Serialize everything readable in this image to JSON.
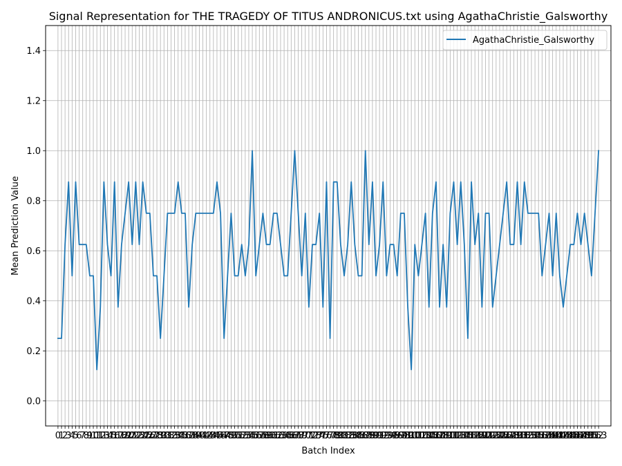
{
  "chart_data": {
    "type": "line",
    "title": "Signal Representation for THE TRAGEDY OF TITUS ANDRONICUS.txt using AgathaChristie_Galsworthy",
    "xlabel": "Batch Index",
    "ylabel": "Mean Prediction Value",
    "ylim": [
      -0.1,
      1.5
    ],
    "xlim": [
      -3.5,
      156.5
    ],
    "y_ticks": [
      0.0,
      0.2,
      0.4,
      0.6,
      0.8,
      1.0,
      1.2,
      1.4
    ],
    "y_tick_labels": [
      "0.0",
      "0.2",
      "0.4",
      "0.6",
      "0.8",
      "1.0",
      "1.2",
      "1.4"
    ],
    "grid": true,
    "legend_position": "top-right",
    "color": "#1f77b4",
    "series": [
      {
        "name": "AgathaChristie_Galsworthy",
        "x": [
          0,
          1,
          2,
          3,
          4,
          5,
          6,
          7,
          8,
          9,
          10,
          11,
          12,
          13,
          14,
          15,
          16,
          17,
          18,
          19,
          20,
          21,
          22,
          23,
          24,
          25,
          26,
          27,
          28,
          29,
          30,
          31,
          32,
          33,
          34,
          35,
          36,
          37,
          38,
          39,
          40,
          41,
          42,
          43,
          44,
          45,
          46,
          47,
          48,
          49,
          50,
          51,
          52,
          53,
          54,
          55,
          56,
          57,
          58,
          59,
          60,
          61,
          62,
          63,
          64,
          65,
          66,
          67,
          68,
          69,
          70,
          71,
          72,
          73,
          74,
          75,
          76,
          77,
          78,
          79,
          80,
          81,
          82,
          83,
          84,
          85,
          86,
          87,
          88,
          89,
          90,
          91,
          92,
          93,
          94,
          95,
          96,
          97,
          98,
          99,
          100,
          101,
          102,
          103,
          104,
          105,
          106,
          107,
          108,
          109,
          110,
          111,
          112,
          113,
          114,
          115,
          116,
          117,
          118,
          119,
          120,
          121,
          122,
          123,
          124,
          125,
          126,
          127,
          128,
          129,
          130,
          131,
          132,
          133,
          134,
          135,
          136,
          137,
          138,
          139,
          140,
          141,
          142,
          143,
          144,
          145,
          146,
          147,
          148,
          149,
          150,
          151,
          152,
          153
        ],
        "values": [
          0.25,
          0.25,
          0.625,
          0.875,
          0.5,
          0.875,
          0.625,
          0.625,
          0.625,
          0.5,
          0.5,
          0.125,
          0.375,
          0.875,
          0.625,
          0.5,
          0.875,
          0.375,
          0.625,
          0.75,
          0.875,
          0.625,
          0.875,
          0.625,
          0.875,
          0.75,
          0.75,
          0.5,
          0.5,
          0.25,
          0.5,
          0.75,
          0.75,
          0.75,
          0.875,
          0.75,
          0.75,
          0.375,
          0.625,
          0.75,
          0.75,
          0.75,
          0.75,
          0.75,
          0.75,
          0.875,
          0.75,
          0.25,
          0.5,
          0.75,
          0.5,
          0.5,
          0.625,
          0.5,
          0.625,
          1.0,
          0.5,
          0.625,
          0.75,
          0.625,
          0.625,
          0.75,
          0.75,
          0.625,
          0.5,
          0.5,
          0.75,
          1.0,
          0.75,
          0.5,
          0.75,
          0.375,
          0.625,
          0.625,
          0.75,
          0.375,
          0.875,
          0.25,
          0.875,
          0.875,
          0.625,
          0.5,
          0.625,
          0.875,
          0.625,
          0.5,
          0.5,
          1.0,
          0.625,
          0.875,
          0.5,
          0.625,
          0.875,
          0.5,
          0.625,
          0.625,
          0.5,
          0.75,
          0.75,
          0.375,
          0.125,
          0.625,
          0.5,
          0.625,
          0.75,
          0.375,
          0.75,
          0.875,
          0.375,
          0.625,
          0.375,
          0.75,
          0.875,
          0.625,
          0.875,
          0.625,
          0.25,
          0.875,
          0.625,
          0.75,
          0.375,
          0.75,
          0.75,
          0.375,
          0.5,
          0.625,
          0.75,
          0.875,
          0.625,
          0.625,
          0.875,
          0.625,
          0.875,
          0.75,
          0.75,
          0.75,
          0.75,
          0.5,
          0.625,
          0.75,
          0.5,
          0.75,
          0.5,
          0.375,
          0.5,
          0.625,
          0.625,
          0.75,
          0.625,
          0.75,
          0.625,
          0.5,
          0.75,
          1.0
        ]
      }
    ]
  }
}
